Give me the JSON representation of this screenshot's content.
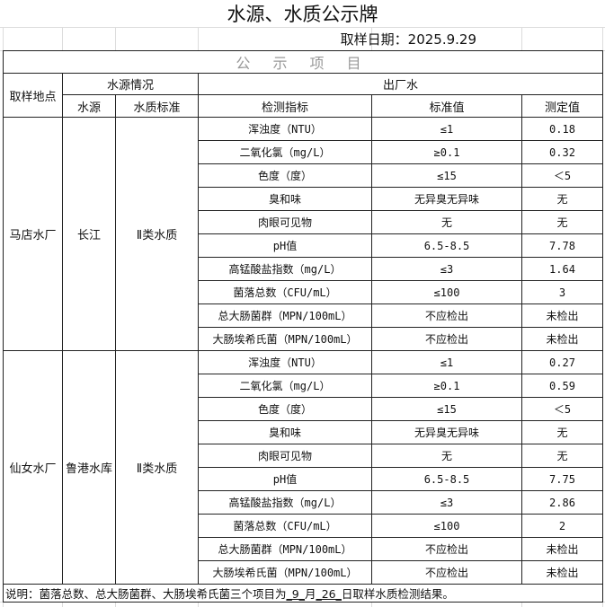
{
  "title": "水源、水质公示牌",
  "date": "取样日期：2025.9.29",
  "section": "公 示 项 目",
  "headers": {
    "site": "取样地点",
    "source_group": "水源情况",
    "out_group": "出厂水",
    "source": "水源",
    "standard": "水质标准",
    "indicator": "检测指标",
    "std_value": "标准值",
    "measured": "测定值"
  },
  "plants": [
    {
      "name": "马店水厂",
      "source": "长江",
      "standard": "Ⅱ类水质",
      "rows": [
        [
          "浑浊度（NTU）",
          "≤1",
          "0.18"
        ],
        [
          "二氧化氯（mg/L）",
          "≥0.1",
          "0.32"
        ],
        [
          "色度（度）",
          "≤15",
          "＜5"
        ],
        [
          "臭和味",
          "无异臭无异味",
          "无"
        ],
        [
          "肉眼可见物",
          "无",
          "无"
        ],
        [
          "pH值",
          "6.5-8.5",
          "7.78"
        ],
        [
          "高锰酸盐指数（mg/L）",
          "≤3",
          "1.64"
        ],
        [
          "菌落总数（CFU/mL）",
          "≤100",
          "3"
        ],
        [
          "总大肠菌群（MPN/100mL）",
          "不应检出",
          "未检出"
        ],
        [
          "大肠埃希氏菌（MPN/100mL）",
          "不应检出",
          "未检出"
        ]
      ]
    },
    {
      "name": "仙女水厂",
      "source": "鲁港水库",
      "standard": "Ⅱ类水质",
      "rows": [
        [
          "浑浊度（NTU）",
          "≤1",
          "0.27"
        ],
        [
          "二氧化氯（mg/L）",
          "≥0.1",
          "0.59"
        ],
        [
          "色度（度）",
          "≤15",
          "＜5"
        ],
        [
          "臭和味",
          "无异臭无异味",
          "无"
        ],
        [
          "肉眼可见物",
          "无",
          "无"
        ],
        [
          "pH值",
          "6.5-8.5",
          "7.75"
        ],
        [
          "高锰酸盐指数（mg/L）",
          "≤3",
          "2.86"
        ],
        [
          "菌落总数（CFU/mL）",
          "≤100",
          "2"
        ],
        [
          "总大肠菌群（MPN/100mL）",
          "不应检出",
          "未检出"
        ],
        [
          "大肠埃希氏菌（MPN/100mL）",
          "不应检出",
          "未检出"
        ]
      ]
    }
  ],
  "note": {
    "prefix": "说明：菌落总数、总大肠菌群、大肠埃希氏菌三个项目为",
    "month": "_9_",
    "mid": "月",
    "day": "_26_",
    "suffix": "日取样水质检测结果。"
  }
}
